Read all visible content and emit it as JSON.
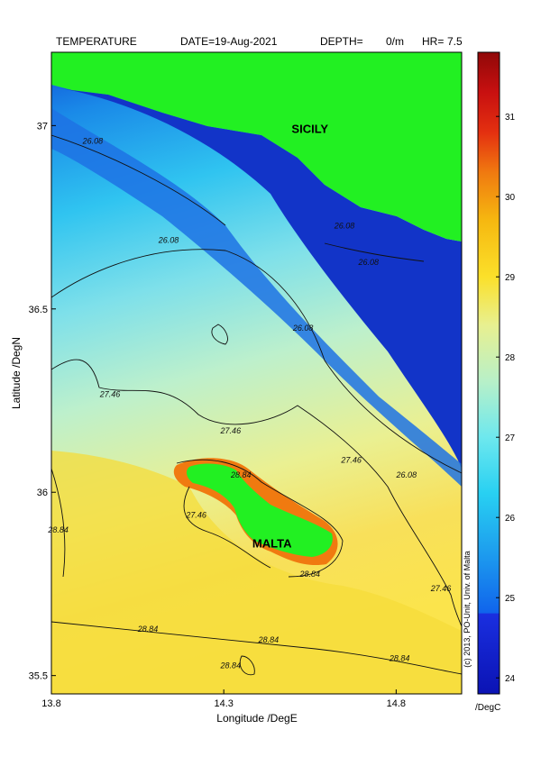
{
  "header": {
    "variable": "TEMPERATURE",
    "date_label": "DATE=",
    "date_value": "19-Aug-2021",
    "depth_label": "DEPTH=",
    "depth_value": "0/m",
    "hr_label": "HR=",
    "hr_value": "7.5"
  },
  "axes": {
    "xlabel": "Longitude /DegE",
    "ylabel": "Latitude /DegN",
    "xticks": [
      {
        "value": 13.8,
        "label": "13.8"
      },
      {
        "value": 14.3,
        "label": "14.3"
      },
      {
        "value": 14.8,
        "label": "14.8"
      }
    ],
    "yticks": [
      {
        "value": 37.0,
        "label": "37"
      },
      {
        "value": 36.5,
        "label": "36.5"
      },
      {
        "value": 36.0,
        "label": "36"
      },
      {
        "value": 35.5,
        "label": "35.5"
      }
    ],
    "xlim": [
      13.8,
      14.99
    ],
    "ylim": [
      35.45,
      37.2
    ]
  },
  "places": [
    {
      "name": "SICILY",
      "lon": 14.55,
      "lat": 36.98
    },
    {
      "name": "MALTA",
      "lon": 14.44,
      "lat": 35.85
    }
  ],
  "contour_labels": [
    {
      "text": "26.08",
      "lon": 13.92,
      "lat": 36.95
    },
    {
      "text": "26.08",
      "lon": 14.14,
      "lat": 36.68
    },
    {
      "text": "26.08",
      "lon": 14.53,
      "lat": 36.44
    },
    {
      "text": "26.08",
      "lon": 14.83,
      "lat": 36.04
    },
    {
      "text": "26.08",
      "lon": 14.65,
      "lat": 36.72
    },
    {
      "text": "26.08",
      "lon": 14.72,
      "lat": 36.62
    },
    {
      "text": "27.46",
      "lon": 13.97,
      "lat": 36.26
    },
    {
      "text": "27.46",
      "lon": 14.32,
      "lat": 36.16
    },
    {
      "text": "27.46",
      "lon": 14.67,
      "lat": 36.08
    },
    {
      "text": "27.46",
      "lon": 14.22,
      "lat": 35.93
    },
    {
      "text": "27.46",
      "lon": 14.93,
      "lat": 35.73
    },
    {
      "text": "28.84",
      "lon": 14.35,
      "lat": 36.04
    },
    {
      "text": "28.84",
      "lon": 13.82,
      "lat": 35.89
    },
    {
      "text": "28.84",
      "lon": 14.55,
      "lat": 35.77
    },
    {
      "text": "28.84",
      "lon": 14.08,
      "lat": 35.62
    },
    {
      "text": "28.84",
      "lon": 14.43,
      "lat": 35.59
    },
    {
      "text": "28.84",
      "lon": 14.32,
      "lat": 35.52
    },
    {
      "text": "28.84",
      "lon": 14.81,
      "lat": 35.54
    }
  ],
  "colorbar": {
    "min": 23.8,
    "max": 31.8,
    "unit": "/DegC",
    "ticks": [
      {
        "value": 24,
        "label": "24"
      },
      {
        "value": 25,
        "label": "25"
      },
      {
        "value": 26,
        "label": "26"
      },
      {
        "value": 27,
        "label": "27"
      },
      {
        "value": 28,
        "label": "28"
      },
      {
        "value": 29,
        "label": "29"
      },
      {
        "value": 30,
        "label": "30"
      },
      {
        "value": 31,
        "label": "31"
      }
    ],
    "stops": [
      {
        "value": 23.8,
        "color": "#0b13b4"
      },
      {
        "value": 24.8,
        "color": "#1a2fe0"
      },
      {
        "value": 24.81,
        "color": "#1064ec"
      },
      {
        "value": 25.6,
        "color": "#1ea0ee"
      },
      {
        "value": 26.3,
        "color": "#28d0f2"
      },
      {
        "value": 27.0,
        "color": "#6ee8ee"
      },
      {
        "value": 27.7,
        "color": "#b8f0c8"
      },
      {
        "value": 28.4,
        "color": "#e8f090"
      },
      {
        "value": 29.0,
        "color": "#fbe02a"
      },
      {
        "value": 29.7,
        "color": "#f6b810"
      },
      {
        "value": 30.3,
        "color": "#f07a10"
      },
      {
        "value": 30.8,
        "color": "#e43010"
      },
      {
        "value": 31.3,
        "color": "#c81010"
      },
      {
        "value": 31.8,
        "color": "#900808"
      }
    ]
  },
  "land_color": "#22f022",
  "copyright": "(c) 2013, PO-Unit, Univ. of Malta"
}
